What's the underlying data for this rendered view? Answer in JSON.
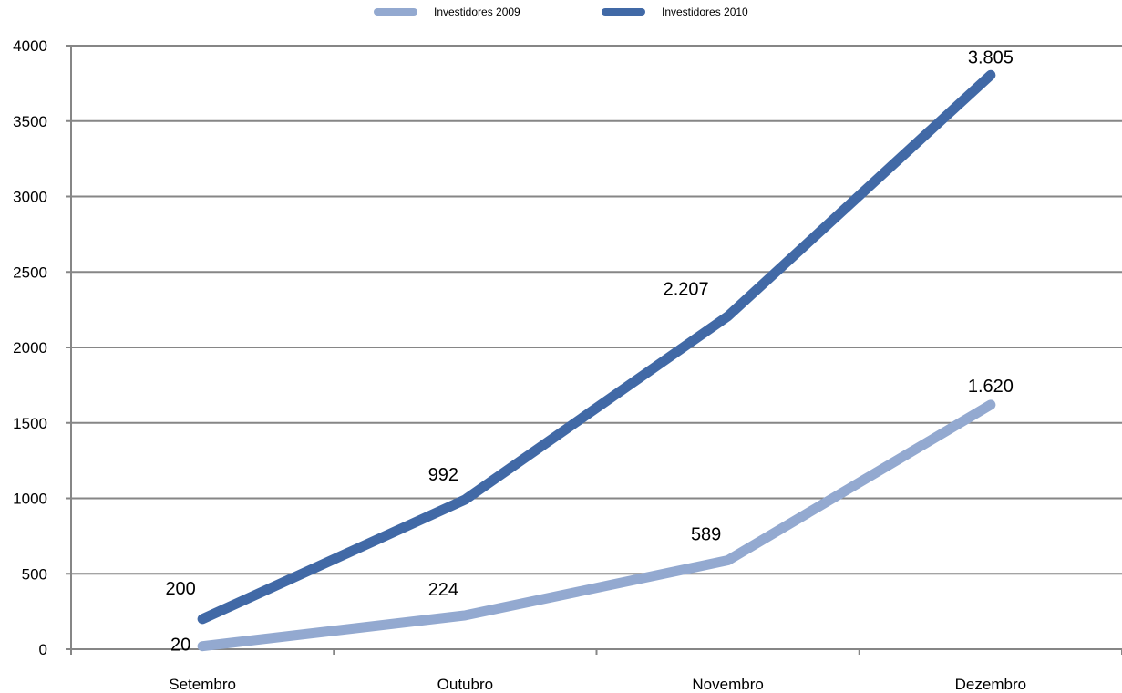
{
  "chart_data": {
    "type": "line",
    "categories": [
      "Setembro",
      "Outubro",
      "Novembro",
      "Dezembro"
    ],
    "series": [
      {
        "name": "Investidores 2009",
        "values": [
          20,
          224,
          589,
          1620
        ],
        "labels": [
          "20",
          "224",
          "589",
          "1.620"
        ],
        "color": "#93a9d0"
      },
      {
        "name": "Investidores 2010",
        "values": [
          200,
          992,
          2207,
          3805
        ],
        "labels": [
          "200",
          "992",
          "2.207",
          "3.805"
        ],
        "color": "#4169a6"
      }
    ],
    "ylim": [
      0,
      4000
    ],
    "yticks": [
      0,
      500,
      1000,
      1500,
      2000,
      2500,
      3000,
      3500,
      4000
    ],
    "grid": true,
    "legend_position": "top"
  }
}
